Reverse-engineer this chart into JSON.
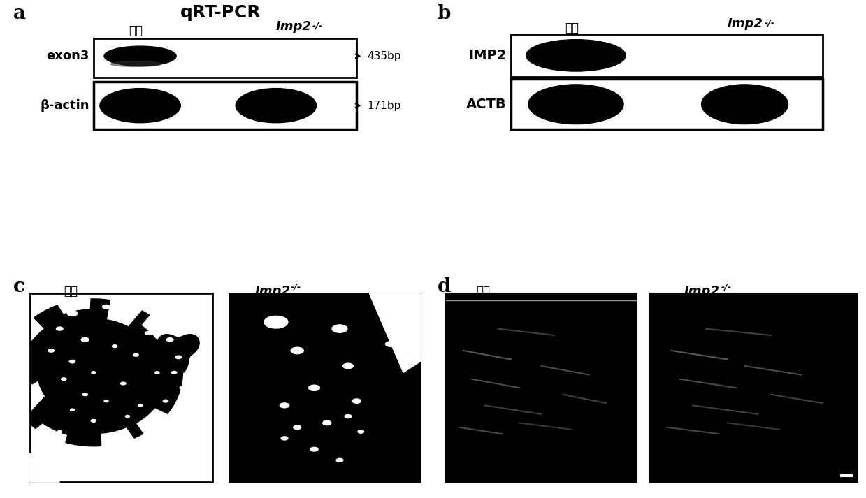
{
  "panel_a_title": "qRT-PCR",
  "panel_a_label": "a",
  "panel_b_label": "b",
  "panel_c_label": "c",
  "panel_d_label": "d",
  "control_label": "对照",
  "knockout_label": "Imp2",
  "knockout_superscript": "-/-",
  "exon3_label": "exon3",
  "beta_actin_label": "β-actin",
  "imp2_protein_label": "IMP2",
  "actb_label": "ACTB",
  "band_435bp": "435bp",
  "band_171bp": "171bp",
  "bg_color": "#ffffff",
  "band_color": "#000000",
  "box_color": "#000000",
  "label_fontsize": 14,
  "title_fontsize": 18,
  "panel_label_fontsize": 20
}
